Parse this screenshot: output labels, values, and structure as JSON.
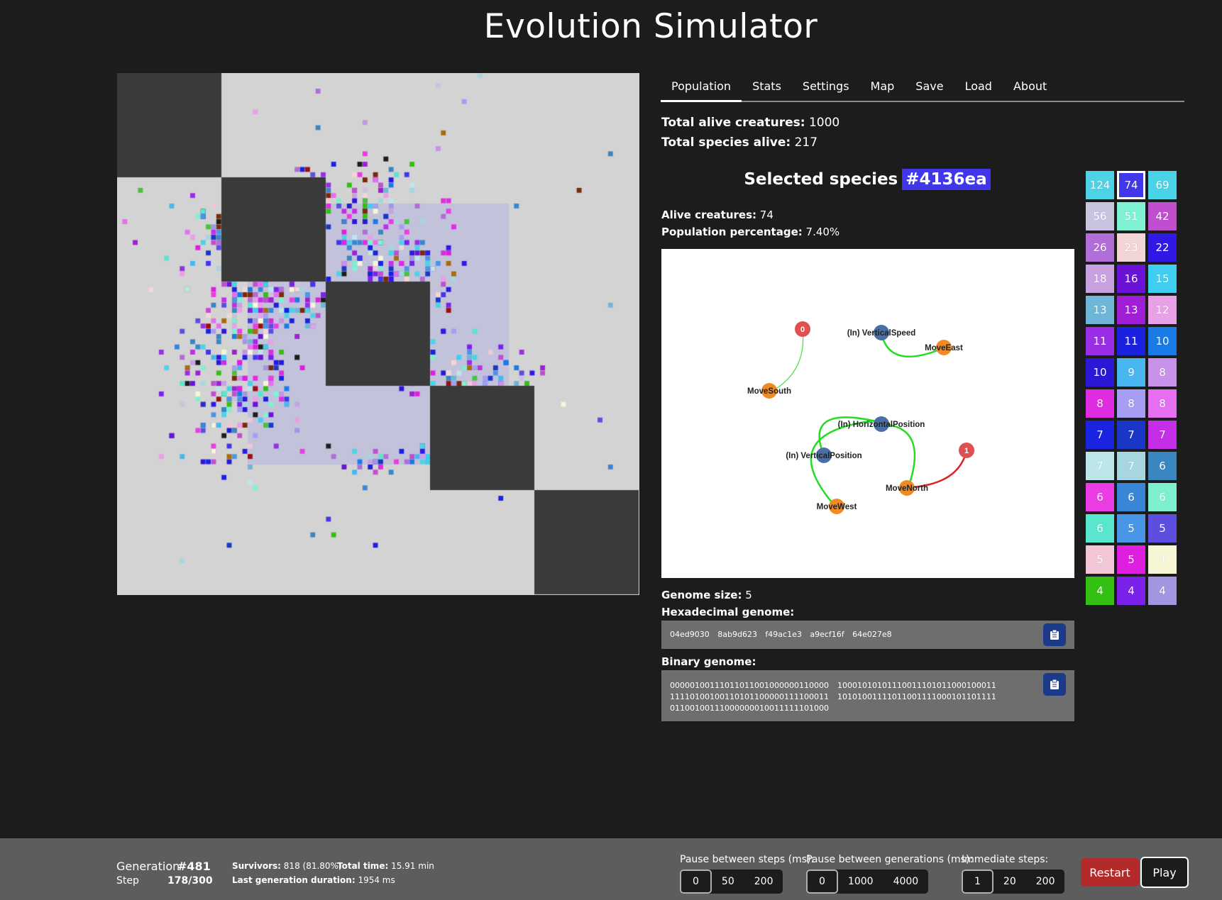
{
  "app": {
    "title": "Evolution Simulator"
  },
  "tabs": [
    "Population",
    "Stats",
    "Settings",
    "Map",
    "Save",
    "Load",
    "About"
  ],
  "active_tab": "Population",
  "population": {
    "total_alive_label": "Total alive creatures:",
    "total_alive": "1000",
    "total_species_label": "Total species alive:",
    "total_species": "217"
  },
  "selected": {
    "title": "Selected species",
    "id": "#4136ea",
    "color": "#4136ea",
    "alive_label": "Alive creatures:",
    "alive": "74",
    "percentage_label": "Population percentage:",
    "percentage": "7.40%"
  },
  "graph": {
    "nodes": [
      {
        "id": "n0",
        "label": "0",
        "kind": "internal"
      },
      {
        "id": "movesouth",
        "label": "MoveSouth",
        "kind": "output"
      },
      {
        "id": "vspeed",
        "label": "(In) VerticalSpeed",
        "kind": "input"
      },
      {
        "id": "moveeast",
        "label": "MoveEast",
        "kind": "output"
      },
      {
        "id": "hpos",
        "label": "(In) HorizontalPosition",
        "kind": "input"
      },
      {
        "id": "vpos",
        "label": "(In) VerticalPosition",
        "kind": "input"
      },
      {
        "id": "n1",
        "label": "1",
        "kind": "internal"
      },
      {
        "id": "movenorth",
        "label": "MoveNorth",
        "kind": "output"
      },
      {
        "id": "movewest",
        "label": "MoveWest",
        "kind": "output"
      }
    ],
    "edges": [
      {
        "from": "n0",
        "to": "movesouth",
        "color": "#44e044"
      },
      {
        "from": "vspeed",
        "to": "moveeast",
        "color": "#22dd22"
      },
      {
        "from": "hpos",
        "to": "movenorth",
        "color": "#22dd22"
      },
      {
        "from": "hpos",
        "to": "movewest",
        "color": "#22dd22"
      },
      {
        "from": "vpos",
        "to": "hpos",
        "color": "#22dd22"
      },
      {
        "from": "n1",
        "to": "movenorth",
        "color": "#dd2222"
      }
    ],
    "colors": {
      "input": "#4a6fa5",
      "output": "#f08a24",
      "internal": "#e05050"
    }
  },
  "genome": {
    "size_label": "Genome size:",
    "size": "5",
    "hex_label": "Hexadecimal genome:",
    "hex": "04ed9030 8ab9d623 f49ac1e3 a9ecf16f 64e027e8",
    "binary_label": "Binary genome:",
    "binary_col1": [
      "00000100111011011001000000110000",
      "11110100100110101100000111100011",
      "01100100111000000010011111101000"
    ],
    "binary_col2": [
      "10001010101110011101011000100011",
      "10101001111011001111000101101111"
    ]
  },
  "species_list": [
    {
      "count": "124",
      "color": "#4fd2e6"
    },
    {
      "count": "74",
      "color": "#4136ea",
      "selected": true
    },
    {
      "count": "69",
      "color": "#4ad3e6"
    },
    {
      "count": "56",
      "color": "#c9c3e0"
    },
    {
      "count": "51",
      "color": "#7ef2d2"
    },
    {
      "count": "42",
      "color": "#c04fd0"
    },
    {
      "count": "26",
      "color": "#b06ed6"
    },
    {
      "count": "23",
      "color": "#f2d6d6"
    },
    {
      "count": "22",
      "color": "#3019e6"
    },
    {
      "count": "18",
      "color": "#c8a2e0"
    },
    {
      "count": "16",
      "color": "#6a12d6"
    },
    {
      "count": "15",
      "color": "#3fcdf0"
    },
    {
      "count": "13",
      "color": "#6eb6d6"
    },
    {
      "count": "13",
      "color": "#a01ed6"
    },
    {
      "count": "12",
      "color": "#e8a0e6"
    },
    {
      "count": "11",
      "color": "#9a2ee6"
    },
    {
      "count": "11",
      "color": "#1a22e0"
    },
    {
      "count": "10",
      "color": "#1a7ae6"
    },
    {
      "count": "10",
      "color": "#2a18d6"
    },
    {
      "count": "9",
      "color": "#4ab6f0"
    },
    {
      "count": "8",
      "color": "#c892ea"
    },
    {
      "count": "8",
      "color": "#e02ce0"
    },
    {
      "count": "8",
      "color": "#a69ef2"
    },
    {
      "count": "8",
      "color": "#e66ef0"
    },
    {
      "count": "7",
      "color": "#1a24e0"
    },
    {
      "count": "7",
      "color": "#1a36c6"
    },
    {
      "count": "7",
      "color": "#c42ee6"
    },
    {
      "count": "7",
      "color": "#bde6ea"
    },
    {
      "count": "7",
      "color": "#a6d6e0"
    },
    {
      "count": "6",
      "color": "#3a86c0"
    },
    {
      "count": "6",
      "color": "#ec3ce6"
    },
    {
      "count": "6",
      "color": "#3a86d6"
    },
    {
      "count": "6",
      "color": "#7ef0d0"
    },
    {
      "count": "6",
      "color": "#58e6cc"
    },
    {
      "count": "5",
      "color": "#4a96e6"
    },
    {
      "count": "5",
      "color": "#5e4ee0"
    },
    {
      "count": "5",
      "color": "#f2c6d6"
    },
    {
      "count": "5",
      "color": "#e01ee0"
    },
    {
      "count": "4",
      "color": "#f6f6d6"
    },
    {
      "count": "4",
      "color": "#34c012"
    },
    {
      "count": "4",
      "color": "#7a22ea"
    },
    {
      "count": "4",
      "color": "#a296e0"
    }
  ],
  "bottom": {
    "generation_label": "Generation",
    "generation": "#481",
    "step_label": "Step",
    "step": "178/300",
    "survivors_label": "Survivors:",
    "survivors": "818 (81.80%)",
    "total_time_label": "Total time:",
    "total_time": "15.91 min",
    "last_gen_label": "Last generation duration:",
    "last_gen": "1954 ms",
    "pause_steps_label": "Pause between steps (ms):",
    "pause_steps": [
      "0",
      "50",
      "200"
    ],
    "pause_steps_selected": "0",
    "pause_gens_label": "Pause between generations (ms):",
    "pause_gens": [
      "0",
      "1000",
      "4000"
    ],
    "pause_gens_selected": "0",
    "immediate_label": "Immediate steps:",
    "immediate": [
      "1",
      "20",
      "200"
    ],
    "immediate_selected": "1",
    "restart_label": "Restart",
    "play_label": "Play"
  },
  "world": {
    "background": "#d3d3d3",
    "obstacle_color": "#3a3a3a",
    "zone_color": "#c2c2da"
  }
}
